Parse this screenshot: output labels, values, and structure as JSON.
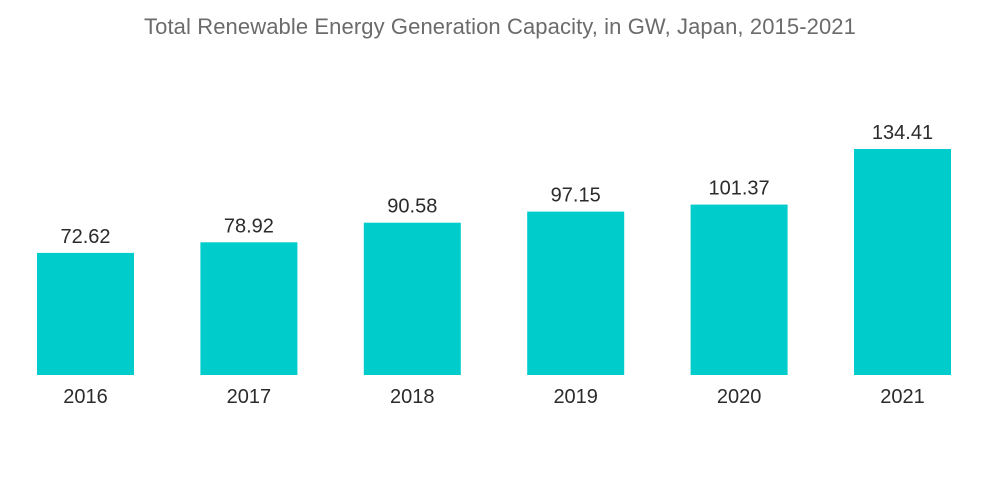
{
  "chart_data": {
    "type": "bar",
    "title": "Total Renewable Energy Generation Capacity, in GW, Japan, 2015-2021",
    "xlabel": "",
    "ylabel": "",
    "categories": [
      "2016",
      "2017",
      "2018",
      "2019",
      "2020",
      "2021"
    ],
    "values": [
      72.62,
      78.92,
      90.58,
      97.15,
      101.37,
      134.41
    ],
    "value_labels": [
      "72.62",
      "78.92",
      "90.58",
      "97.15",
      "101.37",
      "134.41"
    ],
    "ylim": [
      0,
      134.41
    ],
    "grid": false,
    "legend": "none",
    "bar_color": "#00cccc"
  }
}
